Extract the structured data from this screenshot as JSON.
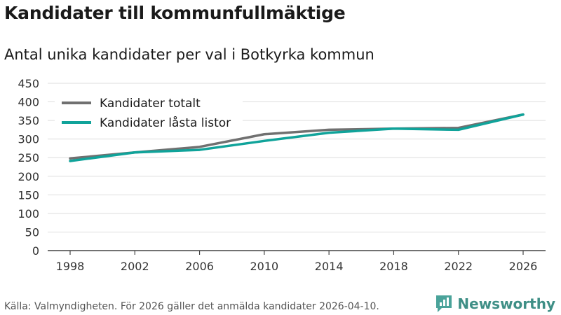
{
  "title": "Kandidater till kommunfullmäktige",
  "subtitle": "Antal unika kandidater per val i Botkyrka kommun",
  "footer": "Källa: Valmyndigheten. För 2026 gäller det anmälda kandidater 2026-04-10.",
  "brand": "Newsworthy",
  "chart_data": {
    "type": "line",
    "x": [
      1998,
      2002,
      2006,
      2010,
      2014,
      2018,
      2022,
      2026
    ],
    "series": [
      {
        "name": "Kandidater totalt",
        "color": "#707070",
        "values": [
          248,
          264,
          279,
          313,
          325,
          328,
          330,
          366
        ]
      },
      {
        "name": "Kandidater låsta listor",
        "color": "#10a39a",
        "values": [
          241,
          264,
          271,
          295,
          317,
          328,
          325,
          366
        ]
      }
    ],
    "ylim": [
      0,
      450
    ],
    "yticks": [
      0,
      50,
      100,
      150,
      200,
      250,
      300,
      350,
      400,
      450
    ],
    "xticks": [
      1998,
      2002,
      2006,
      2010,
      2014,
      2018,
      2022,
      2026
    ],
    "grid": true,
    "legend": "top-left"
  }
}
